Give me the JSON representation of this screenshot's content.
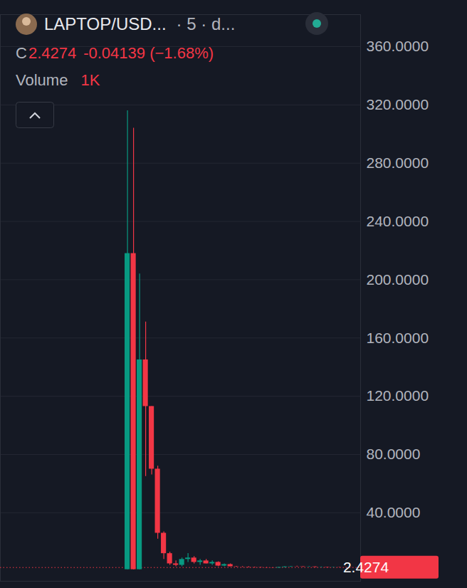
{
  "header": {
    "symbol": "LAPTOP/USD...",
    "interval": "· 5 · d...",
    "close_label": "C",
    "close": "2.4274",
    "change": "-0.04139 (−1.68%)",
    "volume_label": "Volume",
    "volume": "1K"
  },
  "chart_data": {
    "type": "candlestick",
    "x": [
      0,
      1,
      2,
      3,
      4,
      5,
      6,
      7,
      8,
      9,
      10,
      11,
      12,
      13,
      14,
      15,
      16,
      17,
      18,
      19,
      20,
      21,
      22,
      23,
      24,
      25,
      26,
      27,
      28,
      29,
      30,
      31,
      32,
      33,
      34,
      35,
      36,
      37
    ],
    "open": [
      1,
      218,
      1,
      145,
      113,
      70,
      26,
      12,
      5,
      4,
      8,
      9,
      6,
      7,
      5,
      6,
      3.5,
      4.5,
      3,
      2.8,
      2.7,
      2.5,
      2.4,
      2.3,
      2.2,
      2.1,
      2.5,
      2.9,
      3.1,
      3.0,
      2.8,
      2.9,
      2.6,
      2.7,
      2.5,
      2.6,
      2.5,
      2.47
    ],
    "high": [
      316,
      304,
      204,
      171,
      113,
      72,
      27,
      13,
      7,
      9,
      12,
      10,
      8,
      8,
      7,
      6.5,
      5,
      5,
      3.3,
      3.2,
      3.0,
      2.8,
      2.7,
      2.5,
      2.4,
      2.6,
      3.0,
      3.3,
      3.4,
      3.2,
      3.1,
      3.0,
      2.9,
      2.8,
      2.7,
      2.7,
      2.6,
      2.5
    ],
    "low": [
      1,
      1,
      1,
      65,
      66,
      22,
      8,
      4,
      3,
      3,
      6,
      5,
      4,
      5,
      4,
      3,
      3,
      3,
      2.6,
      2.5,
      2.3,
      2.2,
      2.1,
      2.0,
      1.9,
      2.0,
      2.3,
      2.6,
      2.8,
      2.7,
      2.6,
      2.5,
      2.4,
      2.4,
      2.3,
      2.4,
      2.4,
      2.4
    ],
    "close": [
      218,
      1,
      145,
      113,
      70,
      26,
      12,
      5,
      4,
      8,
      9,
      6,
      7,
      5,
      6,
      3.5,
      4.5,
      3,
      2.8,
      2.7,
      2.5,
      2.4,
      2.3,
      2.2,
      2.1,
      2.5,
      2.9,
      3.1,
      3.0,
      2.8,
      2.9,
      2.6,
      2.7,
      2.5,
      2.6,
      2.5,
      2.47,
      2.4274
    ],
    "colors": [
      "#089981",
      "#f23645",
      "#089981",
      "#f23645",
      "#f23645",
      "#f23645",
      "#f23645",
      "#f23645",
      "#f23645",
      "#089981",
      "#089981",
      "#f23645",
      "#089981",
      "#f23645",
      "#089981",
      "#f23645",
      "#089981",
      "#f23645",
      "#f23645",
      "#f23645",
      "#f23645",
      "#f23645",
      "#f23645",
      "#f23645",
      "#f23645",
      "#089981",
      "#089981",
      "#089981",
      "#f23645",
      "#f23645",
      "#089981",
      "#f23645",
      "#089981",
      "#f23645",
      "#089981",
      "#f23645",
      "#f23645",
      "#f23645"
    ],
    "xlim": [
      -21,
      38.5
    ],
    "ylim": [
      -7,
      382
    ],
    "yticks": [
      {
        "value": 40,
        "label": "40.0000"
      },
      {
        "value": 80,
        "label": "80.0000"
      },
      {
        "value": 120,
        "label": "120.0000"
      },
      {
        "value": 160,
        "label": "160.0000"
      },
      {
        "value": 200,
        "label": "200.0000"
      },
      {
        "value": 240,
        "label": "240.0000"
      },
      {
        "value": 280,
        "label": "280.0000"
      },
      {
        "value": 320,
        "label": "320.0000"
      },
      {
        "value": 360,
        "label": "360.0000"
      }
    ],
    "last_price": 2.4274,
    "last_price_color": "#f23645",
    "grid": true,
    "tick_labels": "y"
  }
}
